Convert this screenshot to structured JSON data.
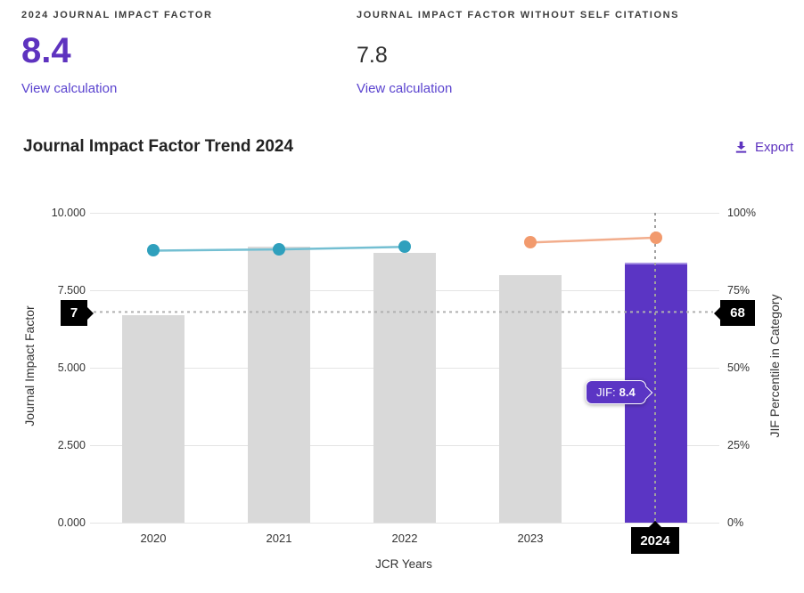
{
  "metric_cards": [
    {
      "label": "2024 JOURNAL IMPACT FACTOR",
      "value": "8.4",
      "link_label": "View calculation"
    },
    {
      "label": "JOURNAL IMPACT FACTOR WITHOUT SELF CITATIONS",
      "value": "7.8",
      "link_label": "View calculation"
    }
  ],
  "trend_section": {
    "title": "Journal Impact Factor Trend 2024",
    "export": {
      "label": "Export",
      "icon": "download-icon"
    }
  },
  "chart_data": {
    "type": "bar",
    "title": "Journal Impact Factor Trend 2024",
    "grid": "horizontal",
    "legend": "none",
    "x_axis": {
      "title": "JCR Years",
      "categories": [
        "2020",
        "2021",
        "2022",
        "2023",
        "2024"
      ]
    },
    "left_axis": {
      "title": "Journal Impact Factor",
      "range": [
        0,
        10
      ],
      "ticks": [
        {
          "label": "10.000",
          "value": 10
        },
        {
          "label": "7.500",
          "value": 7.5
        },
        {
          "label": "5.000",
          "value": 5
        },
        {
          "label": "2.500",
          "value": 2.5
        },
        {
          "label": "0.000",
          "value": 0
        }
      ]
    },
    "right_axis": {
      "title": "JIF Percentile in Category",
      "range": [
        0,
        100
      ],
      "ticks": [
        {
          "label": "100%",
          "value": 100
        },
        {
          "label": "75%",
          "value": 75
        },
        {
          "label": "50%",
          "value": 50
        },
        {
          "label": "25%",
          "value": 25
        },
        {
          "label": "0%",
          "value": 0
        }
      ]
    },
    "series": [
      {
        "name": "Journal Impact Factor",
        "type": "bar",
        "axis": "left",
        "values": [
          6.7,
          8.9,
          8.7,
          8.0,
          8.4
        ],
        "highlight_index": 4
      },
      {
        "name": "JIF Percentile in Category",
        "type": "line",
        "axis": "right",
        "segments": [
          {
            "color_key": "teal",
            "points": [
              {
                "category_index": 0,
                "value": 87.8
              },
              {
                "category_index": 1,
                "value": 88.2
              },
              {
                "category_index": 2,
                "value": 89.0
              }
            ]
          },
          {
            "color_key": "orange",
            "points": [
              {
                "category_index": 3,
                "value": 90.4
              },
              {
                "category_index": 4,
                "value": 92.0
              }
            ]
          }
        ]
      }
    ],
    "crosshair": {
      "x_label": "2024",
      "left_label": "7",
      "right_label": "68",
      "right_axis_value": 68
    },
    "tooltip": {
      "prefix": "JIF:",
      "value": "8.4"
    }
  },
  "colors": {
    "accent_purple": "#5e33bf",
    "link_purple": "#5a43cf",
    "bar_gray": "#d9d9d9",
    "bar_purple": "#5b35c4",
    "teal_dot": "#2fa0bd",
    "teal_line": "#74bfd2",
    "orange_dot": "#f29a6d",
    "orange_line": "#f2ad8c",
    "flag_black": "#000000",
    "gridline": "#e4e4e4",
    "crosshair_gray": "#b0b0b0"
  }
}
